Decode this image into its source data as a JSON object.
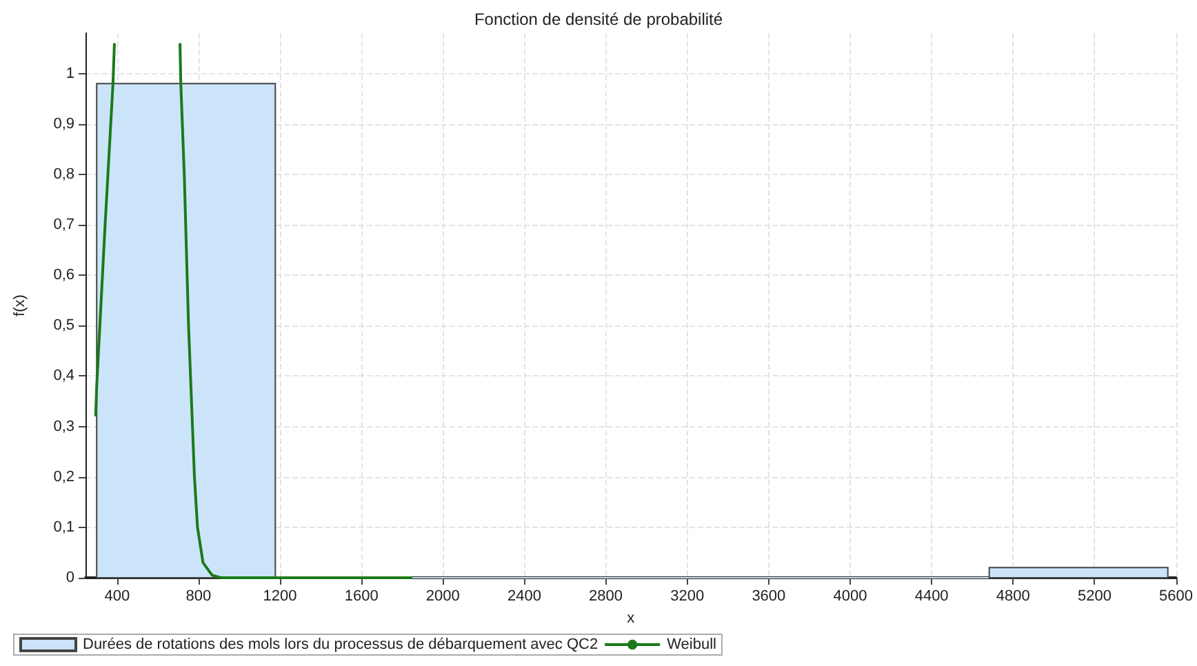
{
  "chart_data": {
    "type": "histogram",
    "title": "Fonction de densité de probabilité",
    "xlabel": "x",
    "ylabel": "f(x)",
    "bins": [
      300,
      1177,
      2053,
      2930,
      3807,
      4683,
      5560
    ],
    "series": [
      {
        "name": "Durées de rotations des mols lors du processus de débarquement avec QC2",
        "color": "#cce4fa",
        "values": [
          0.98,
          0,
          0,
          0,
          0,
          0.02
        ]
      },
      {
        "name": "Weibull",
        "type": "line",
        "color": "#1a7a1a",
        "x": [
          295,
          300,
          340,
          380,
          387,
          500,
          709,
          713,
          730,
          751,
          780,
          795,
          822,
          867,
          911,
          1850
        ],
        "values": [
          0.32,
          0.38,
          0.69,
          0.98,
          1.06,
          null,
          1.06,
          0.98,
          0.8,
          0.5,
          0.2,
          0.1,
          0.03,
          0.005,
          0,
          0
        ]
      }
    ],
    "xlim": [
      245,
      5600
    ],
    "xticks": [
      400,
      800,
      1200,
      1600,
      2000,
      2400,
      2800,
      3200,
      3600,
      4000,
      4400,
      4800,
      5200,
      5600
    ],
    "ylim": [
      0,
      1.08
    ],
    "yticks": [
      0,
      {
        "value": 0.1,
        "label": "0,1"
      },
      {
        "value": 0.2,
        "label": "0,2"
      },
      {
        "value": 0.3,
        "label": "0,3"
      },
      {
        "value": 0.4,
        "label": "0,4"
      },
      {
        "value": 0.5,
        "label": "0,5"
      },
      {
        "value": 0.6,
        "label": "0,6"
      },
      {
        "value": 0.7,
        "label": "0,7"
      },
      {
        "value": 0.8,
        "label": "0,8"
      },
      {
        "value": 0.9,
        "label": "0,9"
      },
      1
    ],
    "grid": true,
    "legend": "bottom",
    "marker": "none"
  }
}
